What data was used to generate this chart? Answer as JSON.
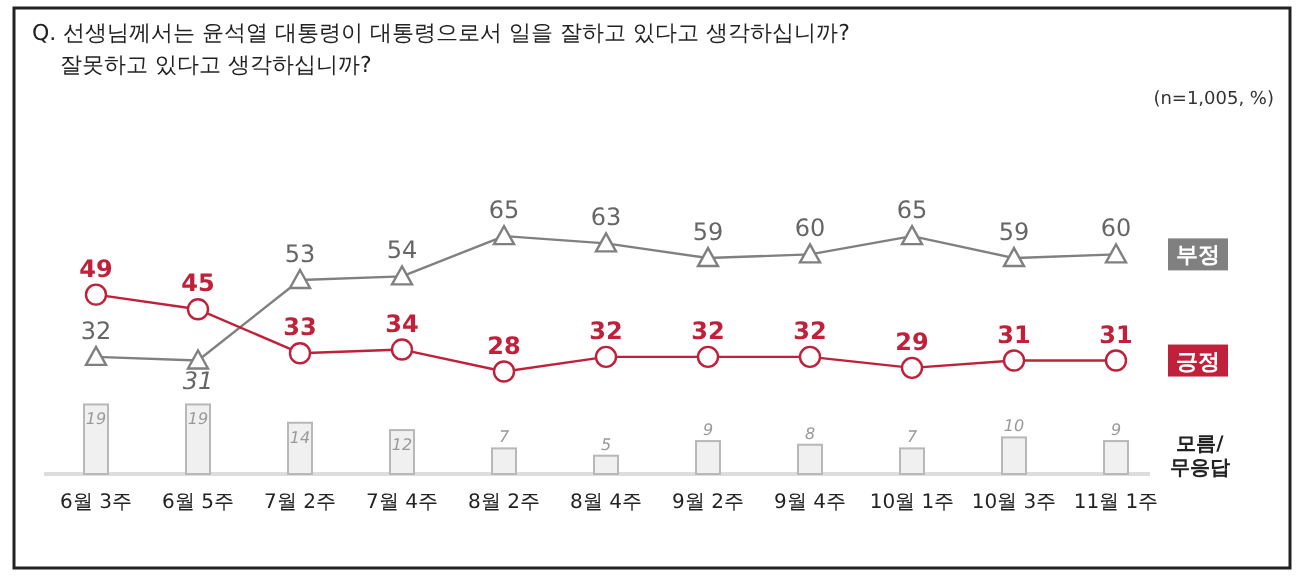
{
  "chart_data": {
    "type": "line",
    "title": "Q. 선생님께서는 윤석열 대통령이 대통령으로서 일을 잘하고 있다고 생각하십니까?\n잘못하고 있다고 생각하십니까?",
    "annotations": [
      "(n=1,005, %)"
    ],
    "categories": [
      "6월 3주",
      "6월 5주",
      "7월 2주",
      "7월 4주",
      "8월 2주",
      "8월 4주",
      "9월 2주",
      "9월 4주",
      "10월 1주",
      "10월 3주",
      "11월 1주"
    ],
    "series": [
      {
        "name": "모름/무응답",
        "type": "bar",
        "color": "#f0f0f0",
        "values": [
          19,
          19,
          14,
          12,
          7,
          5,
          9,
          8,
          7,
          10,
          9
        ]
      },
      {
        "name": "부정",
        "color": "#808080",
        "marker": "triangle",
        "values": [
          32,
          31,
          53,
          54,
          65,
          63,
          59,
          60,
          65,
          59,
          60
        ]
      },
      {
        "name": "긍정",
        "color": "#c0203a",
        "marker": "circle",
        "values": [
          49,
          45,
          33,
          34,
          28,
          32,
          32,
          32,
          29,
          31,
          31
        ]
      }
    ],
    "tick_labels": "x",
    "data_labels": true
  }
}
